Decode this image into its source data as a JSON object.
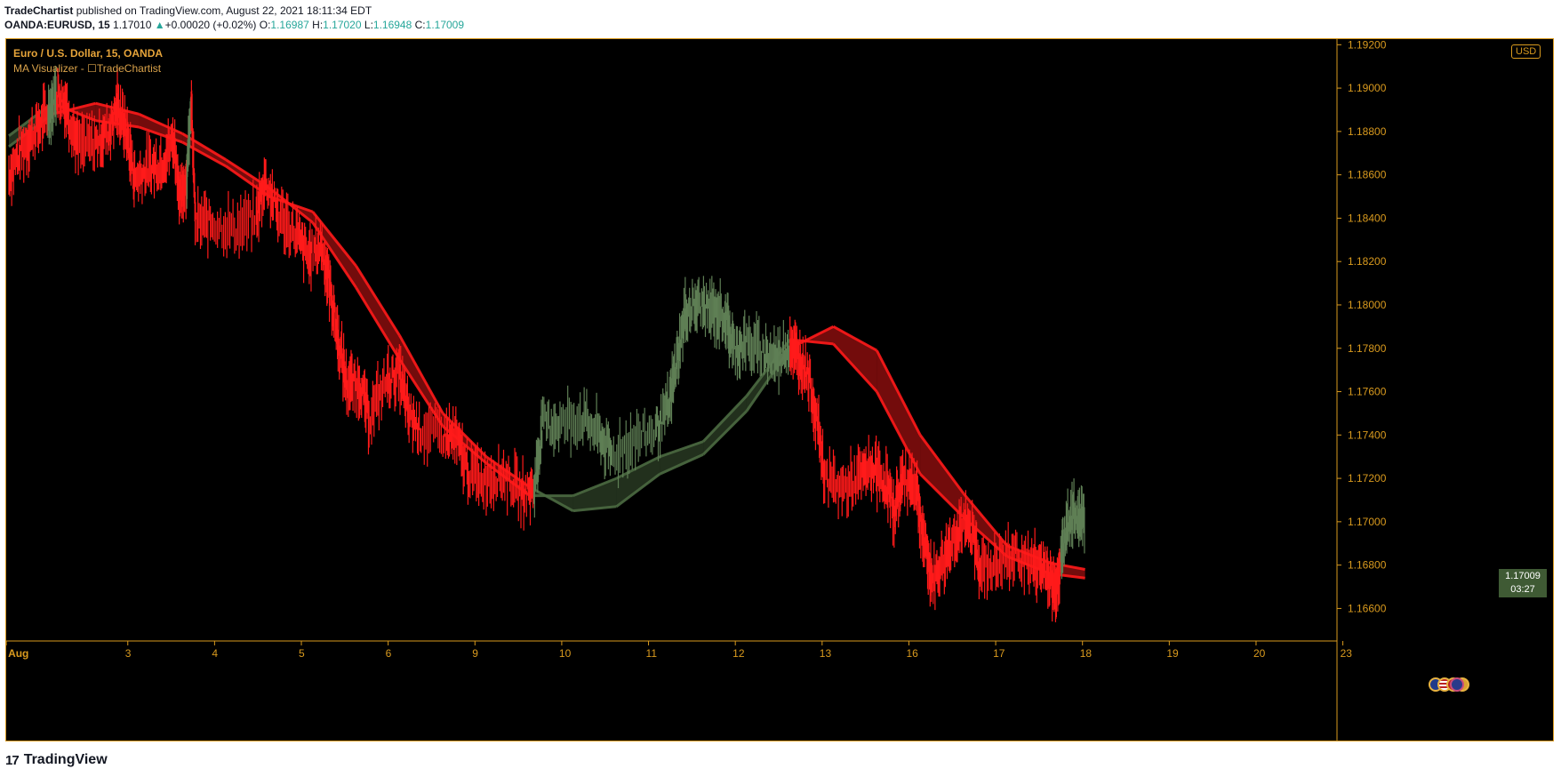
{
  "publication": {
    "author": "TradeChartist",
    "text": " published on TradingView.com, August 22, 2021 18:11:34 EDT"
  },
  "quote": {
    "symbol": "OANDA:EURUSD, 15",
    "last": "1.17010",
    "arrow": "▲",
    "change": "+0.00020 (+0.02%)",
    "o_label": "O:",
    "o": "1.16987",
    "h_label": "H:",
    "h": "1.17020",
    "l_label": "L:",
    "l": "1.16948",
    "c_label": "C:",
    "c": "1.17009"
  },
  "legend": {
    "line1": "Euro / U.S. Dollar, 15, OANDA",
    "line2": "MA Visualizer - ☐TradeChartist"
  },
  "currency": "USD",
  "price_tag": {
    "price": "1.17009",
    "countdown": "03:27"
  },
  "brand": {
    "name": "TradingView",
    "logo": "17"
  },
  "colors": {
    "bear": "#ff1a1a",
    "bull": "#4b6a41",
    "axis": "#d99a1e",
    "background": "#000000"
  },
  "chart_data": {
    "type": "line",
    "title": "",
    "xlabel": "",
    "ylabel": "",
    "ylim": [
      1.1645,
      1.1923
    ],
    "x_ticks": [
      "Aug",
      "3",
      "4",
      "5",
      "6",
      "9",
      "10",
      "11",
      "12",
      "13",
      "16",
      "17",
      "18",
      "19",
      "20",
      "23"
    ],
    "y_ticks": [
      "1.16600",
      "1.16800",
      "1.17000",
      "1.17200",
      "1.17400",
      "1.17600",
      "1.17800",
      "1.18000",
      "1.18200",
      "1.18400",
      "1.18600",
      "1.18800",
      "1.19000",
      "1.19200"
    ],
    "grid": false,
    "x_index_range": [
      0,
      15
    ],
    "price_series": [
      {
        "x": 0.0,
        "y": 1.186,
        "c": "bear"
      },
      {
        "x": 0.15,
        "y": 1.1872,
        "c": "bear"
      },
      {
        "x": 0.3,
        "y": 1.188,
        "c": "bear"
      },
      {
        "x": 0.45,
        "y": 1.1888,
        "c": "bear"
      },
      {
        "x": 0.55,
        "y": 1.1898,
        "c": "bull"
      },
      {
        "x": 0.65,
        "y": 1.1893,
        "c": "bear"
      },
      {
        "x": 0.8,
        "y": 1.1873,
        "c": "bear"
      },
      {
        "x": 1.0,
        "y": 1.1875,
        "c": "bear"
      },
      {
        "x": 1.15,
        "y": 1.188,
        "c": "bear"
      },
      {
        "x": 1.25,
        "y": 1.1892,
        "c": "bear"
      },
      {
        "x": 1.35,
        "y": 1.188,
        "c": "bear"
      },
      {
        "x": 1.45,
        "y": 1.1858,
        "c": "bear"
      },
      {
        "x": 1.6,
        "y": 1.1863,
        "c": "bear"
      },
      {
        "x": 1.75,
        "y": 1.1865,
        "c": "bear"
      },
      {
        "x": 1.9,
        "y": 1.1876,
        "c": "bear"
      },
      {
        "x": 1.98,
        "y": 1.1848,
        "c": "bear"
      },
      {
        "x": 2.05,
        "y": 1.186,
        "c": "bear"
      },
      {
        "x": 2.1,
        "y": 1.1895,
        "c": "bull"
      },
      {
        "x": 2.15,
        "y": 1.1838,
        "c": "bear"
      },
      {
        "x": 2.35,
        "y": 1.1838,
        "c": "bear"
      },
      {
        "x": 2.6,
        "y": 1.1835,
        "c": "bear"
      },
      {
        "x": 2.85,
        "y": 1.184,
        "c": "bear"
      },
      {
        "x": 2.95,
        "y": 1.1858,
        "c": "bear"
      },
      {
        "x": 3.1,
        "y": 1.1842,
        "c": "bear"
      },
      {
        "x": 3.3,
        "y": 1.1833,
        "c": "bear"
      },
      {
        "x": 3.45,
        "y": 1.1822,
        "c": "bear"
      },
      {
        "x": 3.6,
        "y": 1.1828,
        "c": "bear"
      },
      {
        "x": 3.7,
        "y": 1.1808,
        "c": "bear"
      },
      {
        "x": 3.8,
        "y": 1.1782,
        "c": "bear"
      },
      {
        "x": 3.9,
        "y": 1.1763,
        "c": "bear"
      },
      {
        "x": 4.05,
        "y": 1.1763,
        "c": "bear"
      },
      {
        "x": 4.15,
        "y": 1.1748,
        "c": "bear"
      },
      {
        "x": 4.35,
        "y": 1.1765,
        "c": "bear"
      },
      {
        "x": 4.5,
        "y": 1.1768,
        "c": "bear"
      },
      {
        "x": 4.6,
        "y": 1.175,
        "c": "bear"
      },
      {
        "x": 4.75,
        "y": 1.1742,
        "c": "bear"
      },
      {
        "x": 5.0,
        "y": 1.174,
        "c": "bear"
      },
      {
        "x": 5.15,
        "y": 1.1738,
        "c": "bear"
      },
      {
        "x": 5.3,
        "y": 1.1722,
        "c": "bear"
      },
      {
        "x": 5.5,
        "y": 1.172,
        "c": "bear"
      },
      {
        "x": 5.7,
        "y": 1.1722,
        "c": "bear"
      },
      {
        "x": 5.9,
        "y": 1.1713,
        "c": "bear"
      },
      {
        "x": 6.05,
        "y": 1.1715,
        "c": "bear"
      },
      {
        "x": 6.15,
        "y": 1.1745,
        "c": "bull"
      },
      {
        "x": 6.35,
        "y": 1.1745,
        "c": "bull"
      },
      {
        "x": 6.6,
        "y": 1.1748,
        "c": "bull"
      },
      {
        "x": 6.8,
        "y": 1.174,
        "c": "bull"
      },
      {
        "x": 6.95,
        "y": 1.173,
        "c": "bull"
      },
      {
        "x": 7.2,
        "y": 1.1738,
        "c": "bull"
      },
      {
        "x": 7.45,
        "y": 1.1742,
        "c": "bull"
      },
      {
        "x": 7.6,
        "y": 1.1752,
        "c": "bull"
      },
      {
        "x": 7.7,
        "y": 1.1775,
        "c": "bull"
      },
      {
        "x": 7.8,
        "y": 1.1797,
        "c": "bull"
      },
      {
        "x": 7.95,
        "y": 1.18,
        "c": "bull"
      },
      {
        "x": 8.1,
        "y": 1.1797,
        "c": "bull"
      },
      {
        "x": 8.25,
        "y": 1.1795,
        "c": "bull"
      },
      {
        "x": 8.35,
        "y": 1.178,
        "c": "bull"
      },
      {
        "x": 8.5,
        "y": 1.1782,
        "c": "bull"
      },
      {
        "x": 8.7,
        "y": 1.1778,
        "c": "bull"
      },
      {
        "x": 8.85,
        "y": 1.1775,
        "c": "bull"
      },
      {
        "x": 9.0,
        "y": 1.1782,
        "c": "bull"
      },
      {
        "x": 9.1,
        "y": 1.1775,
        "c": "bear"
      },
      {
        "x": 9.2,
        "y": 1.177,
        "c": "bear"
      },
      {
        "x": 9.32,
        "y": 1.1745,
        "c": "bear"
      },
      {
        "x": 9.4,
        "y": 1.172,
        "c": "bear"
      },
      {
        "x": 9.6,
        "y": 1.1715,
        "c": "bear"
      },
      {
        "x": 9.8,
        "y": 1.172,
        "c": "bear"
      },
      {
        "x": 9.95,
        "y": 1.1725,
        "c": "bear"
      },
      {
        "x": 10.1,
        "y": 1.1718,
        "c": "bear"
      },
      {
        "x": 10.2,
        "y": 1.1705,
        "c": "bear"
      },
      {
        "x": 10.3,
        "y": 1.172,
        "c": "bear"
      },
      {
        "x": 10.45,
        "y": 1.1718,
        "c": "bear"
      },
      {
        "x": 10.55,
        "y": 1.1688,
        "c": "bear"
      },
      {
        "x": 10.65,
        "y": 1.1673,
        "c": "bear"
      },
      {
        "x": 10.8,
        "y": 1.1685,
        "c": "bear"
      },
      {
        "x": 10.95,
        "y": 1.1698,
        "c": "bear"
      },
      {
        "x": 11.1,
        "y": 1.1695,
        "c": "bear"
      },
      {
        "x": 11.2,
        "y": 1.1678,
        "c": "bear"
      },
      {
        "x": 11.4,
        "y": 1.168,
        "c": "bear"
      },
      {
        "x": 11.6,
        "y": 1.1685,
        "c": "bear"
      },
      {
        "x": 11.8,
        "y": 1.168,
        "c": "bear"
      },
      {
        "x": 11.95,
        "y": 1.1678,
        "c": "bear"
      },
      {
        "x": 12.05,
        "y": 1.1668,
        "c": "bear"
      },
      {
        "x": 12.12,
        "y": 1.1682,
        "c": "bear"
      },
      {
        "x": 12.2,
        "y": 1.17,
        "c": "bull"
      },
      {
        "x": 12.3,
        "y": 1.1703,
        "c": "bull"
      },
      {
        "x": 12.4,
        "y": 1.1701,
        "c": "bull"
      }
    ],
    "ma_band": [
      {
        "x": 0.0,
        "fast": 1.1873,
        "slow": 1.1878,
        "c": "bull"
      },
      {
        "x": 0.5,
        "fast": 1.1888,
        "slow": 1.1893,
        "c": "bull"
      },
      {
        "x": 1.0,
        "fast": 1.1893,
        "slow": 1.1885,
        "c": "bear"
      },
      {
        "x": 1.5,
        "fast": 1.1888,
        "slow": 1.1882,
        "c": "bear"
      },
      {
        "x": 2.0,
        "fast": 1.1879,
        "slow": 1.1875,
        "c": "bear"
      },
      {
        "x": 2.5,
        "fast": 1.1867,
        "slow": 1.1864,
        "c": "bear"
      },
      {
        "x": 3.0,
        "fast": 1.1854,
        "slow": 1.185,
        "c": "bear"
      },
      {
        "x": 3.5,
        "fast": 1.1838,
        "slow": 1.1843,
        "c": "bear"
      },
      {
        "x": 4.0,
        "fast": 1.1808,
        "slow": 1.1818,
        "c": "bear"
      },
      {
        "x": 4.5,
        "fast": 1.1775,
        "slow": 1.1786,
        "c": "bear"
      },
      {
        "x": 5.0,
        "fast": 1.1744,
        "slow": 1.175,
        "c": "bear"
      },
      {
        "x": 5.5,
        "fast": 1.1727,
        "slow": 1.173,
        "c": "bear"
      },
      {
        "x": 6.0,
        "fast": 1.1712,
        "slow": 1.1716,
        "c": "bear"
      },
      {
        "x": 6.5,
        "fast": 1.1712,
        "slow": 1.1705,
        "c": "bull"
      },
      {
        "x": 7.0,
        "fast": 1.172,
        "slow": 1.1707,
        "c": "bull"
      },
      {
        "x": 7.5,
        "fast": 1.173,
        "slow": 1.1722,
        "c": "bull"
      },
      {
        "x": 8.0,
        "fast": 1.1737,
        "slow": 1.1731,
        "c": "bull"
      },
      {
        "x": 8.5,
        "fast": 1.1758,
        "slow": 1.1751,
        "c": "bull"
      },
      {
        "x": 9.0,
        "fast": 1.1784,
        "slow": 1.178,
        "c": "bull"
      },
      {
        "x": 9.5,
        "fast": 1.1782,
        "slow": 1.179,
        "c": "bear"
      },
      {
        "x": 10.0,
        "fast": 1.176,
        "slow": 1.1779,
        "c": "bear"
      },
      {
        "x": 10.5,
        "fast": 1.1722,
        "slow": 1.174,
        "c": "bear"
      },
      {
        "x": 11.0,
        "fast": 1.1702,
        "slow": 1.1713,
        "c": "bear"
      },
      {
        "x": 11.5,
        "fast": 1.1684,
        "slow": 1.1689,
        "c": "bear"
      },
      {
        "x": 12.0,
        "fast": 1.1676,
        "slow": 1.1681,
        "c": "bear"
      },
      {
        "x": 12.4,
        "fast": 1.1674,
        "slow": 1.1678,
        "c": "bear"
      }
    ]
  }
}
